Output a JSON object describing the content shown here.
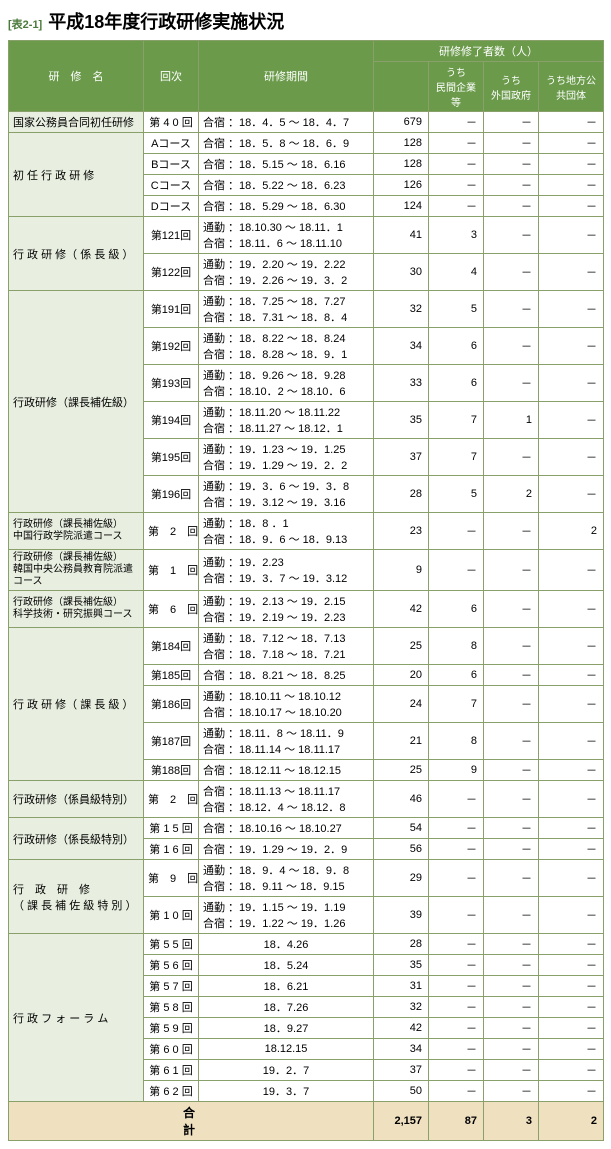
{
  "tableLabel": "[表2-1]",
  "title": "平成18年度行政研修実施状況",
  "headers": {
    "name": "研　修　名",
    "session": "回次",
    "period": "研修期間",
    "completers": "研修修了者数（人）",
    "sub1": "うち\n民間企業等",
    "sub2": "うち\n外国政府",
    "sub3": "うち地方公\n共団体"
  },
  "rows": [
    {
      "name": "国家公務員合同初任研修",
      "session": "第 4 0 回",
      "period": "合宿 ：18．4．5 ～ 18．4．7",
      "c1": "679",
      "c2": "－",
      "c3": "－",
      "c4": "－"
    },
    {
      "name": "初 任 行 政 研 修",
      "rowspan": 4,
      "session": "Aコース",
      "period": "合宿 ：18．5．8 ～ 18．6．9",
      "c1": "128",
      "c2": "－",
      "c3": "－",
      "c4": "－"
    },
    {
      "session": "Bコース",
      "period": "合宿 ：18．5.15 ～ 18．6.16",
      "c1": "128",
      "c2": "－",
      "c3": "－",
      "c4": "－"
    },
    {
      "session": "Cコース",
      "period": "合宿 ：18．5.22 ～ 18．6.23",
      "c1": "126",
      "c2": "－",
      "c3": "－",
      "c4": "－"
    },
    {
      "session": "Dコース",
      "period": "合宿 ：18．5.29 ～ 18．6.30",
      "c1": "124",
      "c2": "－",
      "c3": "－",
      "c4": "－"
    },
    {
      "name": "行 政 研 修（ 係 長 級 ）",
      "rowspan": 2,
      "session": "第121回",
      "period": "通勤 ：18.10.30 ～ 18.11．1\n合宿 ：18.11．6 ～ 18.11.10",
      "c1": "41",
      "c2": "3",
      "c3": "－",
      "c4": "－"
    },
    {
      "session": "第122回",
      "period": "通勤 ：19．2.20 ～ 19．2.22\n合宿 ：19．2.26 ～ 19．3．2",
      "c1": "30",
      "c2": "4",
      "c3": "－",
      "c4": "－"
    },
    {
      "name": "行政研修（課長補佐級）",
      "rowspan": 6,
      "session": "第191回",
      "period": "通勤 ：18．7.25 ～ 18．7.27\n合宿 ：18．7.31 ～ 18．8．4",
      "c1": "32",
      "c2": "5",
      "c3": "－",
      "c4": "－"
    },
    {
      "session": "第192回",
      "period": "通勤 ：18．8.22 ～ 18．8.24\n合宿 ：18．8.28 ～ 18．9．1",
      "c1": "34",
      "c2": "6",
      "c3": "－",
      "c4": "－"
    },
    {
      "session": "第193回",
      "period": "通勤 ：18．9.26 ～ 18．9.28\n合宿 ：18.10．2 ～ 18.10．6",
      "c1": "33",
      "c2": "6",
      "c3": "－",
      "c4": "－"
    },
    {
      "session": "第194回",
      "period": "通勤 ：18.11.20 ～ 18.11.22\n合宿 ：18.11.27 ～ 18.12．1",
      "c1": "35",
      "c2": "7",
      "c3": "1",
      "c4": "－"
    },
    {
      "session": "第195回",
      "period": "通勤 ：19．1.23 ～ 19．1.25\n合宿 ：19．1.29 ～ 19．2．2",
      "c1": "37",
      "c2": "7",
      "c3": "－",
      "c4": "－"
    },
    {
      "session": "第196回",
      "period": "通勤 ：19．3．6 ～ 19．3．8\n合宿 ：19．3.12 ～ 19．3.16",
      "c1": "28",
      "c2": "5",
      "c3": "2",
      "c4": "－"
    },
    {
      "name": "行政研修（課長補佐級）\n中国行政学院派遣コース",
      "small": true,
      "session": "第　2　回",
      "period": "通勤 ：18．8 ．1\n合宿 ：18．9．6 ～ 18．9.13",
      "c1": "23",
      "c2": "－",
      "c3": "－",
      "c4": "2"
    },
    {
      "name": "行政研修（課長補佐級）\n韓国中央公務員教育院派遣コース",
      "small": true,
      "session": "第　1　回",
      "period": "通勤 ：19．2.23\n合宿 ：19．3．7 ～ 19．3.12",
      "c1": "9",
      "c2": "－",
      "c3": "－",
      "c4": "－"
    },
    {
      "name": "行政研修（課長補佐級）\n科学技術・研究振興コース",
      "small": true,
      "session": "第　6　回",
      "period": "通勤 ：19．2.13 ～ 19．2.15\n合宿 ：19．2.19 ～ 19．2.23",
      "c1": "42",
      "c2": "6",
      "c3": "－",
      "c4": "－"
    },
    {
      "name": "行 政 研 修（ 課 長 級 ）",
      "rowspan": 5,
      "session": "第184回",
      "period": "通勤 ：18．7.12 ～ 18．7.13\n合宿 ：18．7.18 ～ 18．7.21",
      "c1": "25",
      "c2": "8",
      "c3": "－",
      "c4": "－"
    },
    {
      "session": "第185回",
      "period": "合宿 ：18．8.21 ～ 18．8.25",
      "c1": "20",
      "c2": "6",
      "c3": "－",
      "c4": "－"
    },
    {
      "session": "第186回",
      "period": "通勤 ：18.10.11 ～ 18.10.12\n合宿 ：18.10.17 ～ 18.10.20",
      "c1": "24",
      "c2": "7",
      "c3": "－",
      "c4": "－"
    },
    {
      "session": "第187回",
      "period": "通勤 ：18.11．8 ～ 18.11．9\n合宿 ：18.11.14 ～ 18.11.17",
      "c1": "21",
      "c2": "8",
      "c3": "－",
      "c4": "－"
    },
    {
      "session": "第188回",
      "period": "合宿 ：18.12.11 ～ 18.12.15",
      "c1": "25",
      "c2": "9",
      "c3": "－",
      "c4": "－"
    },
    {
      "name": "行政研修（係員級特別）",
      "session": "第　2　回",
      "period": "合宿 ：18.11.13 ～ 18.11.17\n合宿 ：18.12．4 ～ 18.12．8",
      "c1": "46",
      "c2": "－",
      "c3": "－",
      "c4": "－"
    },
    {
      "name": "行政研修（係長級特別）",
      "rowspan": 2,
      "session": "第 1 5 回",
      "period": "合宿 ：18.10.16 ～ 18.10.27",
      "c1": "54",
      "c2": "－",
      "c3": "－",
      "c4": "－"
    },
    {
      "session": "第 1 6 回",
      "period": "合宿 ：19．1.29 ～ 19．2．9",
      "c1": "56",
      "c2": "－",
      "c3": "－",
      "c4": "－"
    },
    {
      "name": "行　政　研　修\n（ 課 長 補 佐 級 特 別 ）",
      "rowspan": 2,
      "session": "第　9　回",
      "period": "通勤 ：18．9．4 ～ 18．9．8\n合宿 ：18．9.11 ～ 18．9.15",
      "c1": "29",
      "c2": "－",
      "c3": "－",
      "c4": "－"
    },
    {
      "session": "第 1 0 回",
      "period": "通勤 ：19．1.15 ～ 19．1.19\n合宿 ：19．1.22 ～ 19．1.26",
      "c1": "39",
      "c2": "－",
      "c3": "－",
      "c4": "－"
    },
    {
      "name": "行 政 フ ォ ー ラ ム",
      "rowspan": 8,
      "session": "第 5 5 回",
      "periodCenter": "18．4.26",
      "c1": "28",
      "c2": "－",
      "c3": "－",
      "c4": "－"
    },
    {
      "session": "第 5 6 回",
      "periodCenter": "18．5.24",
      "c1": "35",
      "c2": "－",
      "c3": "－",
      "c4": "－"
    },
    {
      "session": "第 5 7 回",
      "periodCenter": "18．6.21",
      "c1": "31",
      "c2": "－",
      "c3": "－",
      "c4": "－"
    },
    {
      "session": "第 5 8 回",
      "periodCenter": "18．7.26",
      "c1": "32",
      "c2": "－",
      "c3": "－",
      "c4": "－"
    },
    {
      "session": "第 5 9 回",
      "periodCenter": "18．9.27",
      "c1": "42",
      "c2": "－",
      "c3": "－",
      "c4": "－"
    },
    {
      "session": "第 6 0 回",
      "periodCenter": "18.12.15",
      "c1": "34",
      "c2": "－",
      "c3": "－",
      "c4": "－"
    },
    {
      "session": "第 6 1 回",
      "periodCenter": "19．2．7",
      "c1": "37",
      "c2": "－",
      "c3": "－",
      "c4": "－"
    },
    {
      "session": "第 6 2 回",
      "periodCenter": "19．3．7",
      "c1": "50",
      "c2": "－",
      "c3": "－",
      "c4": "－"
    }
  ],
  "totals": {
    "label": "合計",
    "c1": "2,157",
    "c2": "87",
    "c3": "3",
    "c4": "2"
  },
  "colors": {
    "headerBg": "#6a9a4a",
    "nameBg": "#e8efe0",
    "totalBg": "#efe0c0",
    "border": "#8aa06a"
  },
  "colWidths": {
    "name": 135,
    "session": 55,
    "period": 175,
    "c1": 55,
    "c2": 55,
    "c3": 55,
    "c4": 65
  }
}
